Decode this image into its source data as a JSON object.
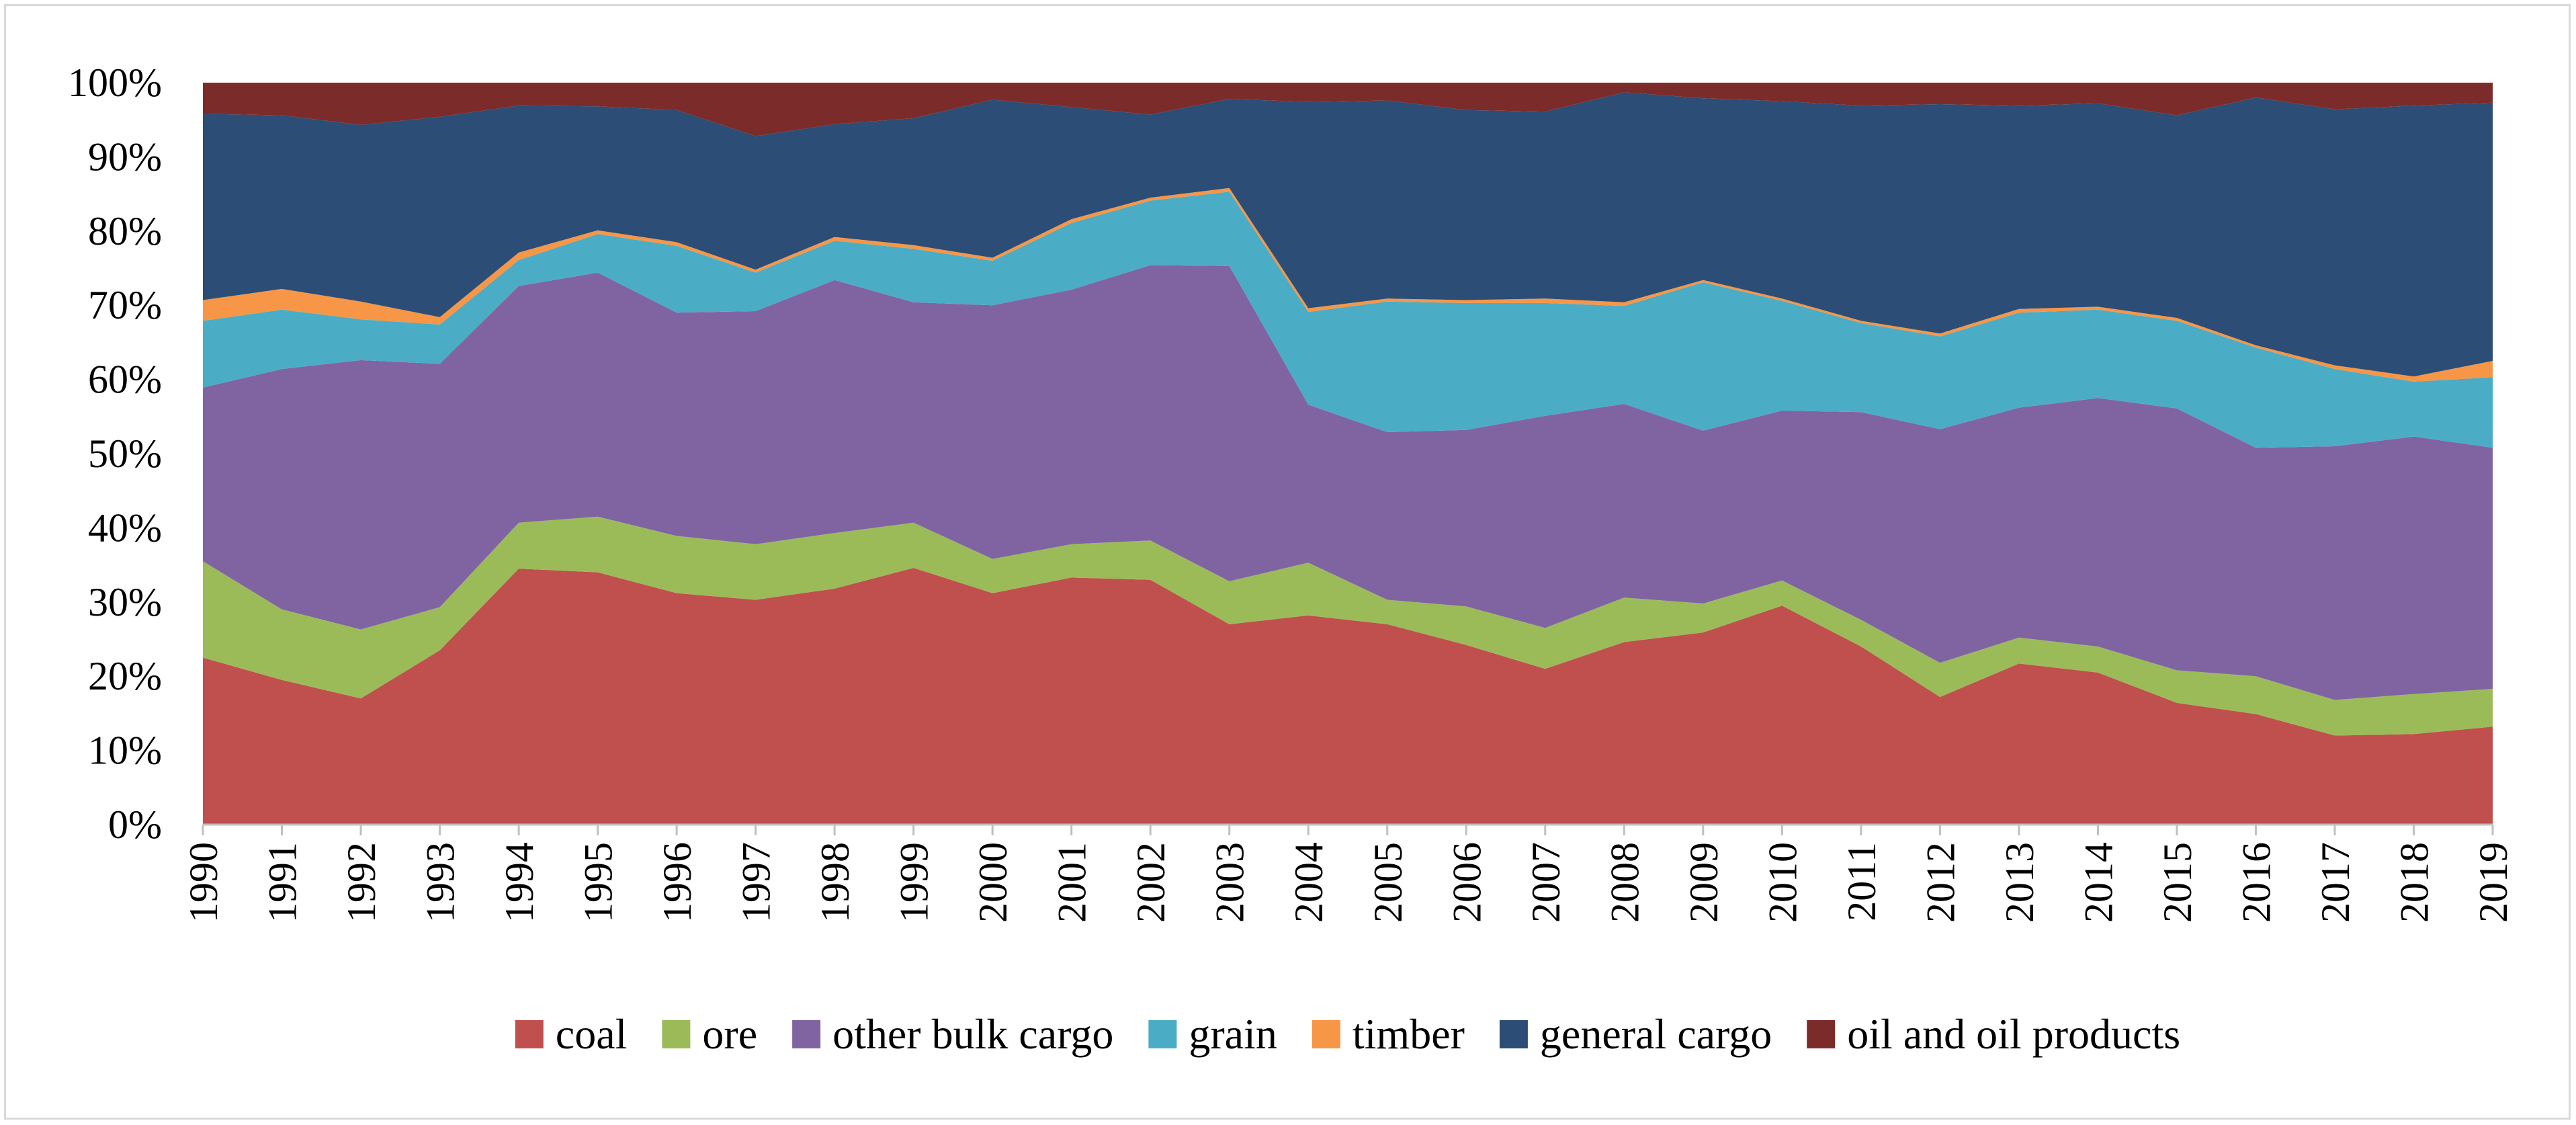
{
  "chart_data": {
    "type": "area",
    "stacked": true,
    "percent": true,
    "title": "",
    "xlabel": "",
    "ylabel": "",
    "ylim": [
      0,
      100
    ],
    "yticks": [
      "0%",
      "10%",
      "20%",
      "30%",
      "40%",
      "50%",
      "60%",
      "70%",
      "80%",
      "90%",
      "100%"
    ],
    "categories": [
      "1990",
      "1991",
      "1992",
      "1993",
      "1994",
      "1995",
      "1996",
      "1997",
      "1998",
      "1999",
      "2000",
      "2001",
      "2002",
      "2003",
      "2004",
      "2005",
      "2006",
      "2007",
      "2008",
      "2009",
      "2010",
      "2011",
      "2012",
      "2013",
      "2014",
      "2015",
      "2016",
      "2017",
      "2018",
      "2019"
    ],
    "legend_position": "bottom",
    "series": [
      {
        "name": "coal",
        "color": "#c0504d",
        "values": [
          22.5,
          19.5,
          17,
          23.5,
          34.5,
          34,
          31.2,
          30.3,
          31.8,
          34.6,
          31.2,
          33.3,
          33,
          27,
          28.2,
          27,
          24.2,
          21,
          24.6,
          25.9,
          29.5,
          24,
          17.2,
          21.7,
          20.5,
          16.4,
          14.9,
          12,
          12.2,
          13.2
        ]
      },
      {
        "name": "ore",
        "color": "#9bbb59",
        "values": [
          13,
          9.5,
          9.3,
          5.8,
          6.2,
          7.5,
          7.7,
          7.5,
          7.5,
          6.1,
          4.6,
          4.5,
          5.3,
          5.8,
          7.1,
          3.3,
          5.2,
          5.5,
          6,
          3.9,
          3.4,
          3.6,
          4.6,
          3.5,
          3.5,
          4.4,
          5.1,
          4.8,
          5.4,
          5.1
        ]
      },
      {
        "name": "other bulk cargo",
        "color": "#8064a2",
        "values": [
          23.4,
          32.4,
          36.3,
          32.8,
          31.9,
          32.9,
          30.1,
          31.4,
          34.1,
          29.7,
          34.2,
          34.3,
          37.1,
          42.5,
          21.3,
          22.6,
          23.8,
          28.6,
          26.1,
          23.3,
          22.9,
          28,
          31.5,
          31,
          33.5,
          35.3,
          30.8,
          34.2,
          34.7,
          32.5
        ]
      },
      {
        "name": "grain",
        "color": "#4bacc6",
        "values": [
          9,
          8,
          5.5,
          5.3,
          3.5,
          5.2,
          9,
          5.2,
          5.3,
          7.2,
          6,
          9,
          8.7,
          10,
          12.5,
          17.6,
          17.1,
          15.2,
          13.2,
          20,
          14.8,
          12,
          12.5,
          12.8,
          11.9,
          11.8,
          13.5,
          10.4,
          7.4,
          9.5
        ]
      },
      {
        "name": "timber",
        "color": "#f79646",
        "values": [
          2.8,
          2.8,
          2.4,
          1,
          1,
          0.5,
          0.5,
          0.4,
          0.5,
          0.5,
          0.4,
          0.5,
          0.4,
          0.5,
          0.5,
          0.4,
          0.4,
          0.6,
          0.5,
          0.3,
          0.3,
          0.3,
          0.4,
          0.5,
          0.4,
          0.4,
          0.3,
          0.5,
          0.7,
          2.2
        ]
      },
      {
        "name": "general cargo",
        "color": "#2c4d75",
        "values": [
          25.1,
          23.4,
          23.8,
          27,
          19.8,
          16.7,
          17.8,
          18,
          15.2,
          17.1,
          21.3,
          15.1,
          11.2,
          12,
          27.8,
          26.7,
          25.6,
          25.2,
          28.3,
          24.5,
          26.6,
          29,
          30.9,
          27.4,
          27.4,
          27.3,
          33.4,
          34.5,
          36.5,
          34.8
        ]
      },
      {
        "name": "oil and oil products",
        "color": "#7b2c2a",
        "values": [
          4.2,
          4.4,
          5.7,
          4.6,
          3.1,
          3.2,
          3.7,
          7.2,
          5.6,
          4.8,
          2.3,
          3.3,
          4.3,
          2.2,
          2.6,
          2.4,
          3.7,
          3.9,
          1.3,
          2.1,
          2.5,
          3.1,
          2.9,
          3.1,
          2.8,
          4.4,
          2,
          3.6,
          3.1,
          2.7
        ]
      }
    ]
  }
}
